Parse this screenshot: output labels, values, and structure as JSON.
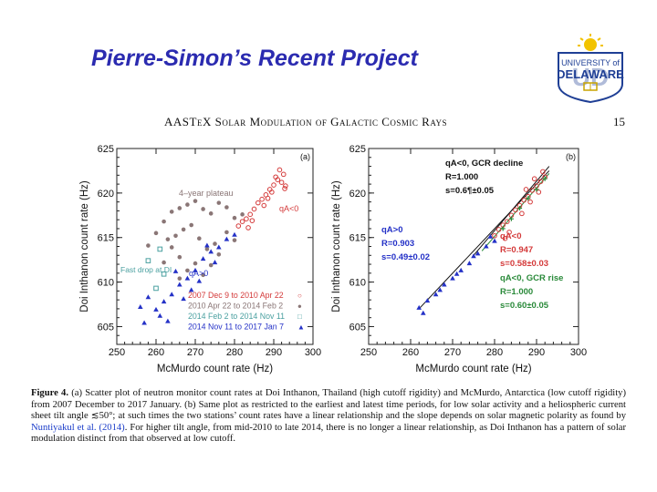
{
  "slide": {
    "title": "Pierre-Simon’s Recent Project"
  },
  "logo": {
    "text_top": "UNIVERSITY of",
    "text_main": "DELAWARE",
    "monogram": "UD",
    "icon": "university-sun-shield-icon"
  },
  "paper_header": {
    "journal": "AASTeX Solar Modulation of Galactic Cosmic Rays",
    "page": "15"
  },
  "colors": {
    "title": "#2b2bb0",
    "red": "#d43a3a",
    "gray": "#8a7676",
    "blue": "#2431c7",
    "green": "#2a8a3a",
    "cyan": "#4aa0a0"
  },
  "chart_data": [
    {
      "panel": "(a)",
      "type": "scatter",
      "xlabel": "McMurdo count rate (Hz)",
      "ylabel": "Doi Inthanon count rate (Hz)",
      "xlim": [
        250,
        300
      ],
      "ylim": [
        603,
        625
      ],
      "xticks": [
        "250",
        "260",
        "270",
        "280",
        "290",
        "300"
      ],
      "yticks": [
        "605",
        "610",
        "615",
        "620",
        "625"
      ],
      "annotations": [
        "4–year plateau",
        "qA<0",
        "Fast drop at DI",
        "qA>0"
      ],
      "legend": [
        {
          "label": "2007 Dec 9 to 2010 Apr 22",
          "marker": "○",
          "color": "#d43a3a"
        },
        {
          "label": "2010 Apr 22 to 2014 Feb 2",
          "marker": "●",
          "color": "#8a7676"
        },
        {
          "label": "2014 Feb 2 to 2014 Nov 11",
          "marker": "□",
          "color": "#4aa0a0"
        },
        {
          "label": "2014 Nov 11 to 2017 Jan 7",
          "marker": "▲",
          "color": "#2431c7"
        }
      ],
      "series": [
        {
          "name": "2007 Dec 9 to 2010 Apr 22",
          "marker": "circle-open",
          "color": "#d43a3a",
          "points": [
            [
              281,
              616.3
            ],
            [
              282,
              616.8
            ],
            [
              283,
              617.1
            ],
            [
              284,
              617.6
            ],
            [
              285,
              618.2
            ],
            [
              286,
              618.9
            ],
            [
              287,
              619.3
            ],
            [
              288,
              619.8
            ],
            [
              289,
              620.4
            ],
            [
              290,
              620.9
            ],
            [
              291,
              621.5
            ],
            [
              292,
              621.2
            ],
            [
              293,
              620.8
            ],
            [
              292.5,
              622.1
            ],
            [
              290.5,
              621.8
            ],
            [
              289.5,
              620.1
            ],
            [
              288.5,
              619.4
            ],
            [
              284.5,
              616.9
            ],
            [
              283.5,
              616.1
            ],
            [
              287.5,
              618.6
            ],
            [
              291.5,
              622.6
            ],
            [
              292.8,
              620.5
            ]
          ]
        },
        {
          "name": "2010 Apr 22 to 2014 Feb 2",
          "marker": "circle-filled",
          "color": "#8a7676",
          "points": [
            [
              262,
              616.8
            ],
            [
              264,
              617.9
            ],
            [
              266,
              618.3
            ],
            [
              268,
              618.7
            ],
            [
              270,
              619.1
            ],
            [
              272,
              618.2
            ],
            [
              274,
              617.7
            ],
            [
              276,
              618.9
            ],
            [
              278,
              618.4
            ],
            [
              280,
              617.2
            ],
            [
              282,
              617.6
            ],
            [
              269,
              616.4
            ],
            [
              267,
              615.9
            ],
            [
              265,
              615.2
            ],
            [
              263,
              614.8
            ],
            [
              271,
              614.9
            ],
            [
              273,
              613.7
            ],
            [
              275,
              614.3
            ],
            [
              266,
              612.8
            ],
            [
              270,
              612.1
            ],
            [
              268,
              611.3
            ],
            [
              272,
              610.8
            ],
            [
              274,
              611.9
            ],
            [
              264,
              613.9
            ],
            [
              260,
              615.5
            ],
            [
              278,
              615.6
            ],
            [
              276,
              613.1
            ],
            [
              280,
              614.7
            ],
            [
              262,
              612.2
            ],
            [
              266,
              610.4
            ],
            [
              258,
              614.1
            ]
          ]
        },
        {
          "name": "2014 Feb 2 to 2014 Nov 11",
          "marker": "square-open",
          "color": "#4aa0a0",
          "points": [
            [
              261,
              613.7
            ],
            [
              258,
              612.4
            ],
            [
              262,
              610.9
            ],
            [
              260,
              609.3
            ]
          ]
        },
        {
          "name": "2014 Nov 11 to 2017 Jan 7",
          "marker": "triangle",
          "color": "#2431c7",
          "points": [
            [
              256,
              607.2
            ],
            [
              258,
              608.3
            ],
            [
              260,
              606.9
            ],
            [
              262,
              607.8
            ],
            [
              264,
              608.6
            ],
            [
              266,
              609.7
            ],
            [
              268,
              610.4
            ],
            [
              270,
              611.3
            ],
            [
              272,
              612.6
            ],
            [
              274,
              613.4
            ],
            [
              276,
              613.9
            ],
            [
              278,
              614.8
            ],
            [
              280,
              615.3
            ],
            [
              263,
              605.6
            ],
            [
              261,
              606.2
            ],
            [
              267,
              608.1
            ],
            [
              271,
              610.1
            ],
            [
              275,
              612.2
            ],
            [
              265,
              611.2
            ],
            [
              269,
              609.1
            ],
            [
              257,
              605.4
            ],
            [
              273,
              614.1
            ]
          ]
        }
      ]
    },
    {
      "panel": "(b)",
      "type": "scatter",
      "xlabel": "McMurdo count rate (Hz)",
      "ylabel": "Doi Inthanon count rate (Hz)",
      "xlim": [
        250,
        300
      ],
      "ylim": [
        603,
        625
      ],
      "xticks": [
        "250",
        "260",
        "270",
        "280",
        "290",
        "300"
      ],
      "yticks": [
        "605",
        "610",
        "615",
        "620",
        "625"
      ],
      "fit_text": [
        {
          "text": "qA<0, GCR decline",
          "color": "#111111"
        },
        {
          "text": "R=1.000",
          "color": "#111111"
        },
        {
          "text": "s=0.6¶±0.05",
          "color": "#111111"
        },
        {
          "text": "qA>0",
          "color": "#2431c7"
        },
        {
          "text": "R=0.903",
          "color": "#2431c7"
        },
        {
          "text": "s=0.49±0.02",
          "color": "#2431c7"
        },
        {
          "text": "qA<0",
          "color": "#d43a3a"
        },
        {
          "text": "R=0.947",
          "color": "#d43a3a"
        },
        {
          "text": "s=0.58±0.03",
          "color": "#d43a3a"
        },
        {
          "text": "qA<0, GCR rise",
          "color": "#2a8a3a"
        },
        {
          "text": "R=1.000",
          "color": "#2a8a3a"
        },
        {
          "text": "s=0.60±0.05",
          "color": "#2a8a3a"
        }
      ],
      "fit_lines": [
        {
          "name": "qA>0 fit",
          "color": "#111111",
          "from": [
            262,
            607.0
          ],
          "to": [
            293,
            622.5
          ]
        },
        {
          "name": "qA<0 GCR decline",
          "color": "#111111",
          "from": [
            275,
            613.0
          ],
          "to": [
            293,
            623.0
          ]
        },
        {
          "name": "qA<0 GCR rise",
          "color": "#2a8a3a",
          "from": [
            277,
            613.5
          ],
          "to": [
            293,
            622.2
          ]
        }
      ],
      "series": [
        {
          "name": "qA<0",
          "marker": "circle-open",
          "color": "#d43a3a",
          "points": [
            [
              280,
              615.2
            ],
            [
              281,
              615.9
            ],
            [
              282,
              616.4
            ],
            [
              283,
              616.8
            ],
            [
              284,
              617.5
            ],
            [
              285,
              618.1
            ],
            [
              286,
              618.6
            ],
            [
              287,
              619.2
            ],
            [
              288,
              619.6
            ],
            [
              289,
              620.3
            ],
            [
              290,
              620.8
            ],
            [
              291,
              621.3
            ],
            [
              292,
              621.8
            ],
            [
              286.5,
              617.7
            ],
            [
              288.5,
              619.0
            ],
            [
              290.5,
              620.1
            ],
            [
              283.5,
              615.6
            ],
            [
              287.5,
              620.4
            ],
            [
              291.5,
              622.4
            ],
            [
              289.5,
              621.6
            ],
            [
              282.5,
              614.9
            ]
          ]
        },
        {
          "name": "qA>0",
          "marker": "triangle",
          "color": "#2431c7",
          "points": [
            [
              262,
              607.1
            ],
            [
              264,
              607.9
            ],
            [
              266,
              608.6
            ],
            [
              268,
              609.7
            ],
            [
              270,
              610.4
            ],
            [
              272,
              611.3
            ],
            [
              274,
              612.1
            ],
            [
              276,
              613.2
            ],
            [
              278,
              614.0
            ],
            [
              280,
              614.6
            ],
            [
              263,
              606.5
            ],
            [
              267,
              609.1
            ],
            [
              271,
              610.9
            ],
            [
              275,
              612.9
            ],
            [
              279,
              615.1
            ]
          ]
        },
        {
          "name": "GCR rise",
          "marker": "cross",
          "color": "#2a8a3a",
          "points": [
            [
              282,
              616.0
            ],
            [
              284,
              617.1
            ],
            [
              286,
              618.3
            ],
            [
              288,
              619.4
            ],
            [
              290,
              620.4
            ],
            [
              292,
              621.6
            ]
          ]
        }
      ]
    }
  ],
  "caption": {
    "label": "Figure 4.",
    "text_1": " (a) Scatter plot of neutron monitor count rates at Doi Inthanon, Thailand (high cutoff rigidity) and McMurdo, Antarctica (low cutoff rigidity) from 2007 December to 2017 January. (b) Same plot as restricted to the earliest and latest time periods, for low solar activity and a heliospheric current sheet tilt angle ≲50°; at such times the two stations’ count rates have a linear relationship and the slope depends on solar magnetic polarity as found by ",
    "citation": "Nuntiyakul et al. (2014)",
    "text_2": ". For higher tilt angle, from mid-2010 to late 2014, there is no longer a linear relationship, as Doi Inthanon has a pattern of solar modulation distinct from that observed at low cutoff."
  }
}
